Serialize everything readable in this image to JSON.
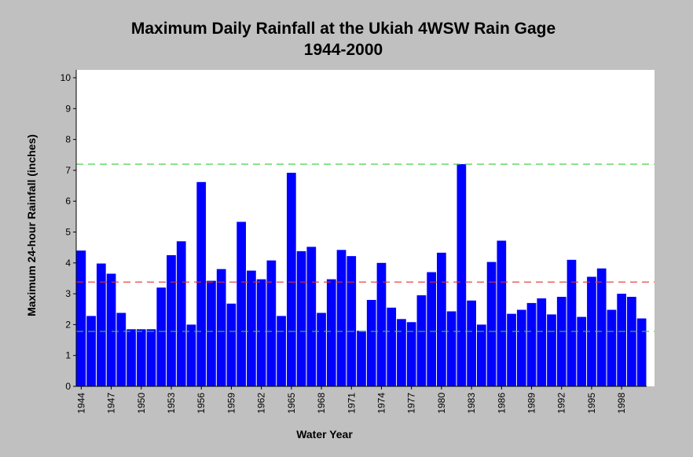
{
  "chart_data": {
    "type": "bar",
    "title": "Maximum Daily Rainfall at the Ukiah 4WSW Rain Gage",
    "subtitle": "1944-2000",
    "x_label": "Water Year",
    "y_label": "Maximum 24-hour Rainfall (inches)",
    "categories": [
      "1944",
      null,
      null,
      "1947",
      null,
      null,
      "1950",
      null,
      null,
      "1953",
      null,
      null,
      "1956",
      null,
      null,
      "1959",
      null,
      null,
      "1962",
      null,
      null,
      "1965",
      null,
      null,
      "1968",
      null,
      null,
      "1971",
      null,
      null,
      "1974",
      null,
      null,
      "1977",
      null,
      null,
      "1980",
      null,
      null,
      "1983",
      null,
      null,
      "1986",
      null,
      null,
      "1989",
      null,
      null,
      "1992",
      null,
      null,
      "1995",
      null,
      null,
      "1998",
      null,
      null
    ],
    "values": [
      4.4,
      2.28,
      3.98,
      3.65,
      2.38,
      1.85,
      1.85,
      1.85,
      3.2,
      4.25,
      4.7,
      2.0,
      6.62,
      3.42,
      3.8,
      2.68,
      5.33,
      3.75,
      3.47,
      4.08,
      2.28,
      6.92,
      4.38,
      4.52,
      2.38,
      3.47,
      4.42,
      4.22,
      1.8,
      2.8,
      4.0,
      2.55,
      2.18,
      2.08,
      2.95,
      3.7,
      4.33,
      2.43,
      7.2,
      2.78,
      2.0,
      4.03,
      4.72,
      2.35,
      2.48,
      2.7,
      2.85,
      2.33,
      2.9,
      4.1,
      2.25,
      3.55,
      3.82,
      2.48,
      3.0,
      2.9,
      2.2
    ],
    "color": "#0000ff",
    "ylim": [
      0,
      10
    ],
    "yticks": [
      0,
      1,
      2,
      3,
      4,
      5,
      6,
      7,
      8,
      9,
      10
    ],
    "reference_lines": [
      {
        "value": 7.2,
        "color": "#33cc33"
      },
      {
        "value": 3.38,
        "color": "#e03030"
      },
      {
        "value": 1.78,
        "color": "#33cc33"
      }
    ]
  }
}
